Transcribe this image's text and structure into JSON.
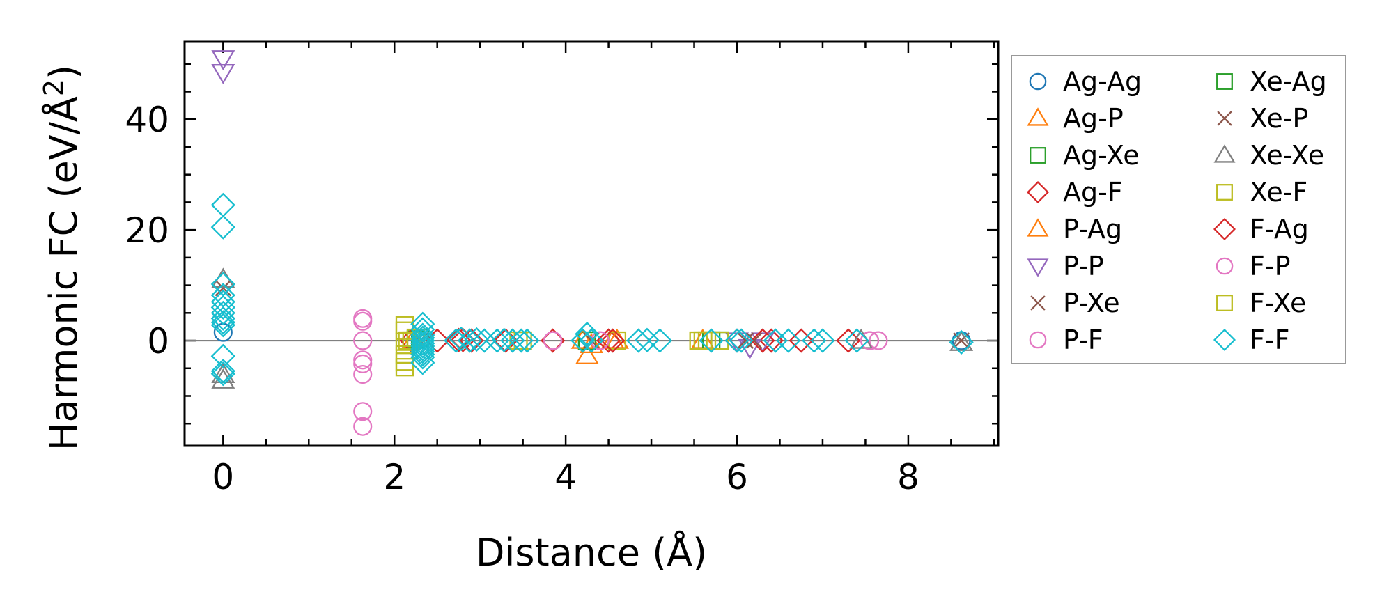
{
  "chart_data": {
    "type": "scatter",
    "xlabel": "Distance (Å)",
    "ylabel": "Harmonic FC (eV/Å²)",
    "xlim": [
      -0.45,
      9.05
    ],
    "ylim": [
      -19,
      54
    ],
    "xticks": [
      0,
      2,
      4,
      6,
      8
    ],
    "yticks": [
      0,
      20,
      40
    ],
    "legend_position": "outside-right",
    "series": [
      {
        "name": "Ag-Ag",
        "marker": "circle",
        "color": "#1f77b4",
        "x": [
          0,
          8.62
        ],
        "y": [
          1.5,
          0
        ]
      },
      {
        "name": "Ag-P",
        "marker": "triangle-up",
        "color": "#ff7f0e",
        "x": [
          2.22,
          4.25,
          4.3,
          4.55,
          5.6
        ],
        "y": [
          0.1,
          -2.8,
          -0.8,
          0,
          0
        ]
      },
      {
        "name": "Ag-Xe",
        "marker": "square",
        "color": "#2ca02c",
        "x": [
          2.25,
          4.25,
          5.7
        ],
        "y": [
          0.2,
          0,
          0
        ]
      },
      {
        "name": "Ag-F",
        "marker": "diamond",
        "color": "#d62728",
        "x": [
          2.2,
          2.75,
          2.9,
          3.85,
          4.5,
          6.0,
          6.4,
          7.3
        ],
        "y": [
          0,
          0.1,
          0,
          0,
          0,
          0,
          0,
          0
        ]
      },
      {
        "name": "P-Ag",
        "marker": "triangle-up",
        "color": "#ff7f0e",
        "x": [
          4.2,
          4.6
        ],
        "y": [
          0,
          0
        ]
      },
      {
        "name": "P-P",
        "marker": "triangle-down",
        "color": "#9467bd",
        "x": [
          0,
          0,
          6.0,
          6.15,
          6.3
        ],
        "y": [
          51,
          48.5,
          0,
          -1.2,
          0
        ]
      },
      {
        "name": "P-Xe",
        "marker": "x",
        "color": "#8c564b",
        "x": [
          0,
          4.3,
          6.2,
          8.62
        ],
        "y": [
          9.5,
          0,
          0,
          0
        ]
      },
      {
        "name": "P-F",
        "marker": "circle",
        "color": "#e377c2",
        "x": [
          1.63,
          1.63,
          1.63,
          1.63,
          1.63,
          1.63,
          1.63,
          1.63,
          3.85,
          7.55,
          7.65
        ],
        "y": [
          4,
          3.5,
          0,
          -3.5,
          -4.2,
          -6.1,
          -12.8,
          -15.5,
          0,
          0,
          0
        ]
      },
      {
        "name": "Xe-Ag",
        "marker": "square",
        "color": "#2ca02c",
        "x": [
          2.3,
          5.8
        ],
        "y": [
          0.5,
          0
        ]
      },
      {
        "name": "Xe-P",
        "marker": "x",
        "color": "#8c564b",
        "x": [
          2.3,
          6.1
        ],
        "y": [
          0,
          0
        ]
      },
      {
        "name": "Xe-Xe",
        "marker": "triangle-up",
        "color": "#7f7f7f",
        "x": [
          0,
          0,
          0,
          7.45,
          8.62
        ],
        "y": [
          11,
          -6.2,
          -7.2,
          0,
          -0.4
        ]
      },
      {
        "name": "Xe-F",
        "marker": "square",
        "color": "#bcbd22",
        "x": [
          2.12,
          2.12,
          2.12,
          2.12,
          2.12,
          2.12,
          2.2,
          2.25,
          3.5,
          4.6,
          5.55,
          5.65,
          5.8
        ],
        "y": [
          2.8,
          1.8,
          -0.2,
          -2.5,
          -3.8,
          -4.8,
          0,
          0.5,
          0,
          0,
          0,
          0,
          0
        ]
      },
      {
        "name": "F-Ag",
        "marker": "diamond",
        "color": "#d62728",
        "x": [
          2.5,
          2.8,
          3.3,
          4.55,
          6.3,
          6.75
        ],
        "y": [
          0,
          0.1,
          0,
          0,
          0,
          0
        ]
      },
      {
        "name": "F-P",
        "marker": "circle",
        "color": "#e377c2",
        "x": [
          3.85,
          4.4,
          7.55
        ],
        "y": [
          0,
          0,
          0
        ]
      },
      {
        "name": "F-Xe",
        "marker": "square",
        "color": "#bcbd22",
        "x": [
          2.15,
          3.45,
          5.6
        ],
        "y": [
          0,
          0,
          0
        ]
      },
      {
        "name": "F-F",
        "marker": "diamond",
        "color": "#17becf",
        "x": [
          0,
          0,
          0,
          0,
          0,
          0,
          0,
          0,
          0,
          0,
          0,
          0,
          0,
          2.33,
          2.33,
          2.33,
          2.33,
          2.33,
          2.33,
          2.33,
          2.33,
          2.33,
          2.33,
          2.33,
          2.33,
          2.72,
          2.78,
          2.88,
          2.96,
          3.05,
          3.2,
          3.28,
          3.38,
          3.48,
          3.55,
          4.2,
          4.25,
          4.3,
          4.85,
          4.95,
          5.1,
          5.7,
          6.0,
          6.05,
          6.45,
          6.6,
          6.9,
          7.0,
          7.4,
          8.62
        ],
        "y": [
          24.5,
          20.5,
          10.2,
          8.2,
          7.0,
          6.0,
          5.0,
          4.0,
          3.3,
          2.8,
          -2.8,
          -5.5,
          -6.0,
          3.0,
          2.0,
          1.0,
          0.5,
          0,
          -0.5,
          -1.0,
          -1.5,
          -2.0,
          -2.5,
          -3.0,
          -4.0,
          0,
          0.3,
          0,
          0.2,
          0,
          0,
          0.1,
          0,
          0,
          0,
          0,
          1.2,
          0,
          0,
          0.1,
          0,
          0,
          0,
          0,
          0,
          0,
          0,
          0,
          0,
          -0.3
        ]
      }
    ]
  }
}
